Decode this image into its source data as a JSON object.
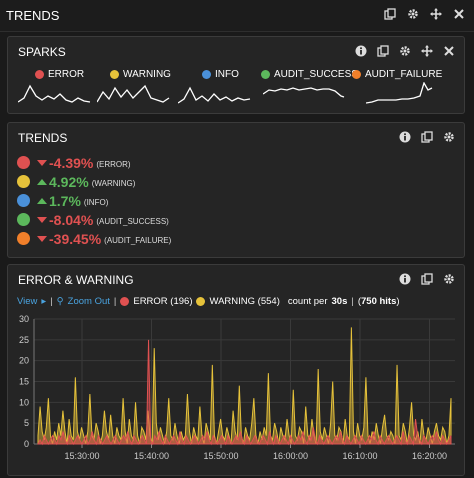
{
  "header": {
    "title": "TRENDS"
  },
  "colors": {
    "error": "#e05151",
    "warning": "#e6c23a",
    "info": "#4a90d9",
    "audit_success": "#5cb85c",
    "audit_failure": "#f07f2a",
    "link": "#4aa3df"
  },
  "sparks": {
    "title": "SPARKS",
    "legend": [
      {
        "label": "ERROR",
        "color": "#e05151"
      },
      {
        "label": "WARNING",
        "color": "#e6c23a"
      },
      {
        "label": "INFO",
        "color": "#4a90d9"
      },
      {
        "label": "AUDIT_SUCCESS",
        "color": "#5cb85c"
      },
      {
        "label": "AUDIT_FAILURE",
        "color": "#f07f2a"
      }
    ]
  },
  "trends": {
    "title": "TRENDS",
    "rows": [
      {
        "color": "#e05151",
        "direction": "down",
        "percent": "-4.39%",
        "name": "(ERROR)"
      },
      {
        "color": "#e6c23a",
        "direction": "up",
        "percent": "4.92%",
        "name": "(WARNING)"
      },
      {
        "color": "#4a90d9",
        "direction": "up",
        "percent": "1.7%",
        "name": "(INFO)"
      },
      {
        "color": "#5cb85c",
        "direction": "down",
        "percent": "-8.04%",
        "name": "(AUDIT_SUCCESS)"
      },
      {
        "color": "#f07f2a",
        "direction": "down",
        "percent": "-39.45%",
        "name": "(AUDIT_FAILURE)"
      }
    ]
  },
  "error_warning": {
    "title": "ERROR & WARNING",
    "view_label": "View",
    "zoom_out_label": "Zoom Out",
    "error_legend": "ERROR (196)",
    "warning_legend": "WARNING (554)",
    "count_prefix": "count per",
    "interval": "30s",
    "hits": "750 hits"
  },
  "chart_data": {
    "type": "area",
    "title": "ERROR & WARNING",
    "xlabel": "",
    "ylabel": "",
    "ylim": [
      0,
      30
    ],
    "yticks": [
      "0",
      "5",
      "10",
      "15",
      "20",
      "25",
      "30"
    ],
    "xticks": [
      "15:30:00",
      "15:40:00",
      "15:50:00",
      "16:00:00",
      "16:10:00",
      "16:20:00"
    ],
    "grid": true,
    "series": [
      {
        "name": "ERROR",
        "color": "#e05151",
        "values": [
          0,
          1,
          0,
          2,
          1,
          0,
          1,
          2,
          1,
          0,
          2,
          1,
          3,
          1,
          0,
          2,
          1,
          0,
          1,
          2,
          1,
          0,
          1,
          2,
          0,
          1,
          3,
          1,
          0,
          2,
          1,
          0,
          1,
          2,
          1,
          0,
          1,
          2,
          1,
          0,
          1,
          2,
          1,
          3,
          1,
          0,
          2,
          1,
          0,
          1,
          2,
          1,
          0,
          25,
          1,
          0,
          2,
          1,
          3,
          1,
          0,
          2,
          1,
          0,
          1,
          2,
          1,
          0,
          3,
          1,
          0,
          2,
          1,
          0,
          1,
          2,
          1,
          0,
          1,
          2,
          1,
          3,
          1,
          0,
          2,
          1,
          0,
          1,
          2,
          1,
          0,
          2,
          1,
          0,
          1,
          2,
          1,
          3,
          1,
          0,
          2,
          1,
          0,
          1,
          2,
          1,
          0,
          1,
          2,
          1,
          0,
          3,
          1,
          0,
          2,
          1,
          0,
          1,
          2,
          1,
          0,
          2,
          1,
          0,
          1,
          2,
          1,
          3,
          1,
          0,
          2,
          1,
          4,
          1,
          0,
          2,
          1,
          0,
          1,
          2,
          1,
          0,
          1,
          2,
          1,
          3,
          1,
          0,
          2,
          1,
          0,
          1,
          2,
          1,
          0,
          2,
          1,
          0,
          1,
          2,
          1,
          3,
          1,
          0,
          2,
          1,
          0,
          1,
          2,
          1,
          0,
          1,
          2,
          1,
          0,
          3,
          1,
          0,
          2,
          1,
          0,
          6,
          2,
          1,
          0,
          2,
          1,
          0,
          1,
          2,
          1,
          3,
          1,
          0,
          2,
          1,
          0,
          1,
          2
        ]
      },
      {
        "name": "WARNING",
        "color": "#e6c23a",
        "values": [
          2,
          9,
          3,
          1,
          4,
          11,
          2,
          0,
          3,
          1,
          5,
          2,
          8,
          3,
          0,
          6,
          2,
          1,
          16,
          3,
          1,
          4,
          2,
          0,
          3,
          12,
          2,
          1,
          5,
          3,
          0,
          2,
          8,
          3,
          1,
          7,
          2,
          0,
          4,
          2,
          1,
          11,
          3,
          0,
          6,
          2,
          1,
          10,
          2,
          0,
          4,
          3,
          1,
          8,
          2,
          0,
          23,
          5,
          1,
          4,
          2,
          0,
          3,
          11,
          2,
          1,
          5,
          2,
          0,
          3,
          1,
          2,
          12,
          3,
          0,
          4,
          2,
          1,
          9,
          2,
          0,
          5,
          3,
          1,
          19,
          2,
          0,
          3,
          6,
          2,
          1,
          4,
          2,
          0,
          8,
          3,
          1,
          14,
          2,
          0,
          4,
          2,
          1,
          5,
          11,
          2,
          0,
          3,
          1,
          4,
          2,
          17,
          2,
          1,
          5,
          3,
          0,
          4,
          2,
          1,
          6,
          2,
          0,
          13,
          2,
          1,
          4,
          3,
          0,
          9,
          2,
          1,
          6,
          2,
          0,
          18,
          3,
          1,
          4,
          2,
          0,
          5,
          15,
          2,
          1,
          4,
          3,
          0,
          6,
          2,
          1,
          28,
          3,
          0,
          5,
          2,
          1,
          4,
          16,
          2,
          0,
          3,
          1,
          5,
          2,
          0,
          4,
          7,
          2,
          1,
          3,
          2,
          0,
          19,
          2,
          1,
          5,
          3,
          0,
          4,
          10,
          2,
          1,
          3,
          0,
          6,
          2,
          1,
          4,
          2,
          0,
          3,
          5,
          2,
          1,
          4,
          3,
          0,
          2,
          11
        ]
      }
    ]
  }
}
